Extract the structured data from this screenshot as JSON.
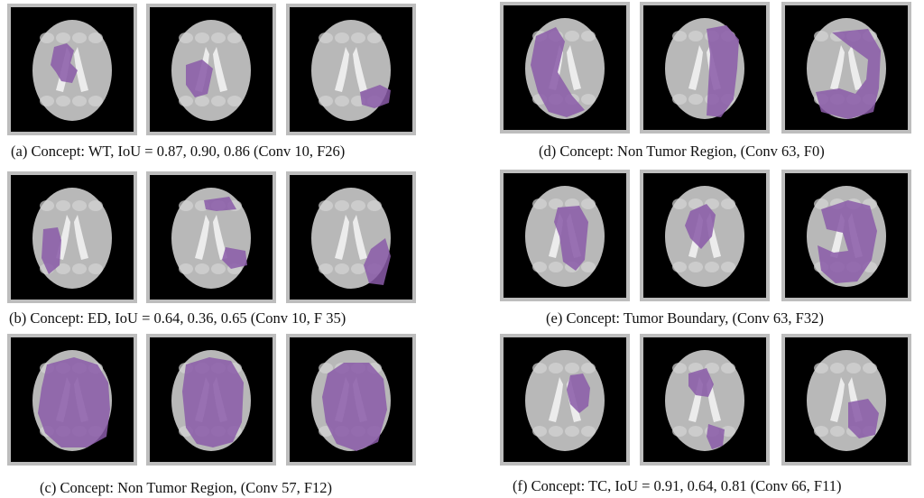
{
  "figure": {
    "panels": [
      {
        "id": "a",
        "caption": "(a) Concept: WT, IoU = 0.87, 0.90, 0.86  (Conv 10, F26)"
      },
      {
        "id": "d",
        "caption": "(d) Concept: Non Tumor Region,  (Conv 63, F0)"
      },
      {
        "id": "b",
        "caption": "(b) Concept: ED, IoU = 0.64, 0.36, 0.65  (Conv 10, F 35)"
      },
      {
        "id": "e",
        "caption": "(e) Concept: Tumor Boundary, (Conv 63, F32)"
      },
      {
        "id": "c",
        "caption": "(c) Concept: Non Tumor Region, (Conv 57, F12)"
      },
      {
        "id": "f",
        "caption": "(f) Concept: TC, IoU = 0.91, 0.64, 0.81  (Conv 66, F11)"
      }
    ],
    "colors": {
      "overlay": "#8a5aa8",
      "brain": "#b8b8b8",
      "frame": "#bdbdbd"
    }
  }
}
